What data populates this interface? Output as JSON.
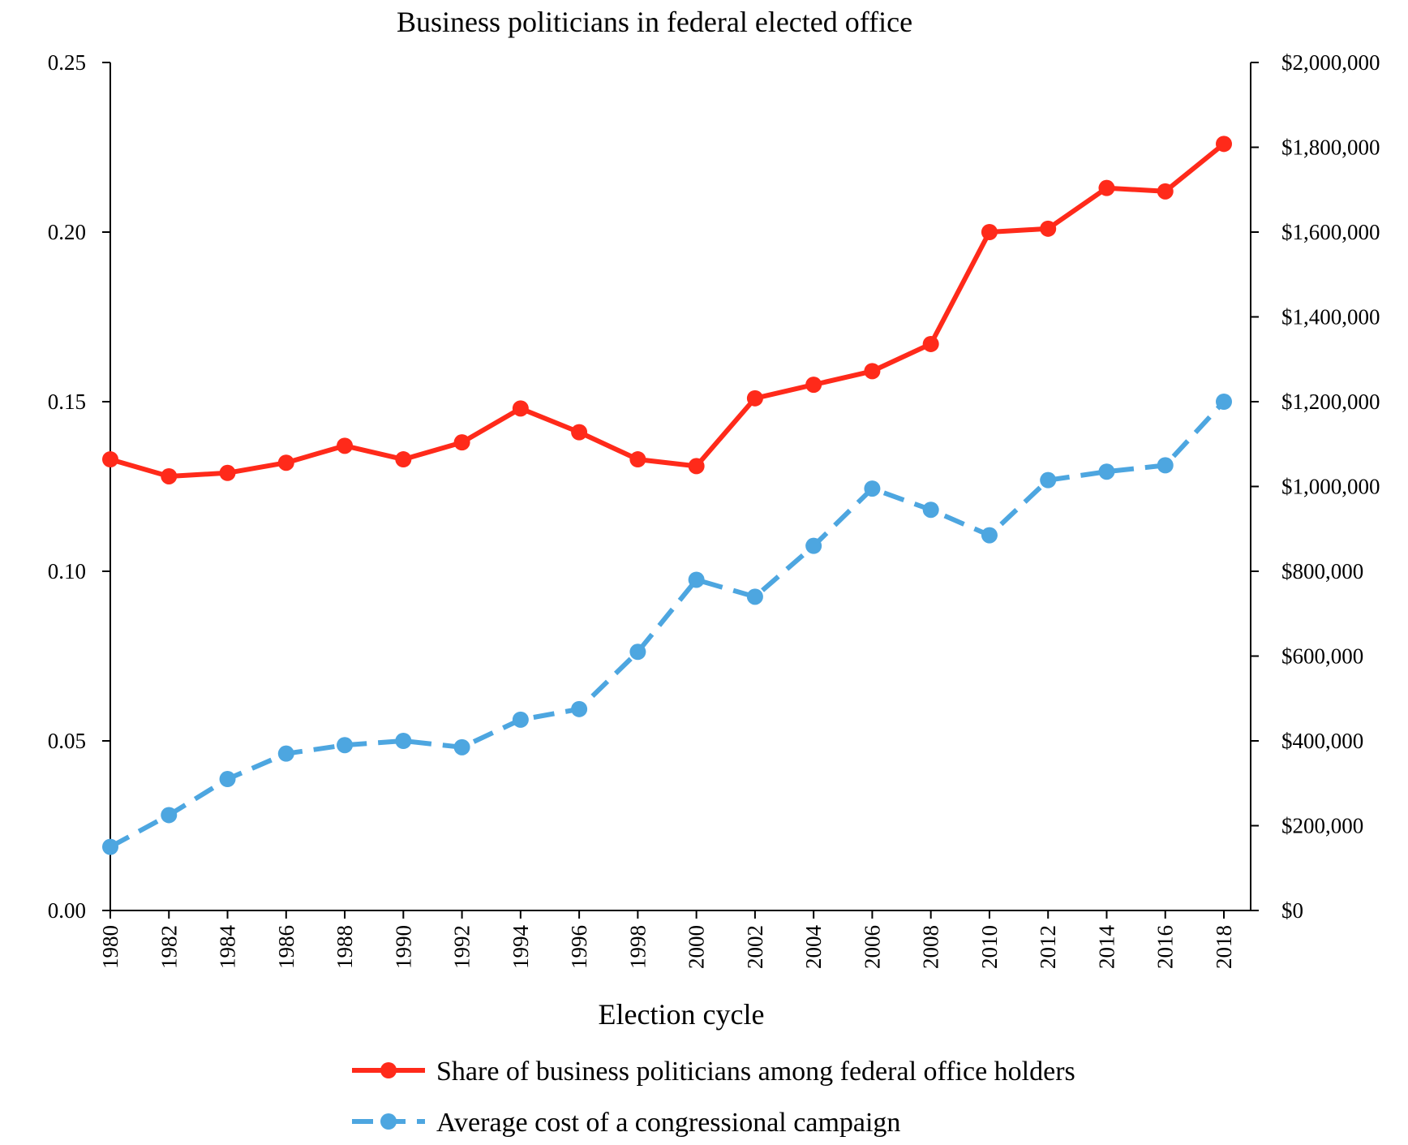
{
  "chart_data": {
    "type": "line",
    "title": "Business politicians in federal elected office",
    "xlabel": "Election cycle",
    "ylabel": "",
    "y2label": "",
    "x": [
      "1980",
      "1982",
      "1984",
      "1986",
      "1988",
      "1990",
      "1992",
      "1994",
      "1996",
      "1998",
      "2000",
      "2002",
      "2004",
      "2006",
      "2008",
      "2010",
      "2012",
      "2014",
      "2016",
      "2018"
    ],
    "ylim": [
      0,
      0.25
    ],
    "y2lim": [
      0,
      2000000
    ],
    "y_ticks": [
      "0.00",
      "0.05",
      "0.10",
      "0.15",
      "0.20",
      "0.25"
    ],
    "y2_ticks": [
      "$0",
      "$200,000",
      "$400,000",
      "$600,000",
      "$800,000",
      "$1,000,000",
      "$1,200,000",
      "$1,400,000",
      "$1,600,000",
      "$1,800,000",
      "$2,000,000"
    ],
    "grid": false,
    "legend_position": "bottom",
    "series": [
      {
        "name": "Share of business politicians among federal office holders",
        "axis": "left",
        "color": "#ff2a1a",
        "style": "solid",
        "values": [
          0.133,
          0.128,
          0.129,
          0.132,
          0.137,
          0.133,
          0.138,
          0.148,
          0.141,
          0.133,
          0.131,
          0.151,
          0.155,
          0.159,
          0.167,
          0.2,
          0.201,
          0.213,
          0.212,
          0.226
        ]
      },
      {
        "name": "Average cost of a congressional campaign",
        "axis": "right",
        "color": "#4da6e0",
        "style": "dashed",
        "values": [
          150000,
          225000,
          310000,
          370000,
          390000,
          400000,
          385000,
          450000,
          475000,
          610000,
          780000,
          740000,
          860000,
          995000,
          945000,
          885000,
          1015000,
          1035000,
          1050000,
          1200000
        ]
      }
    ]
  }
}
